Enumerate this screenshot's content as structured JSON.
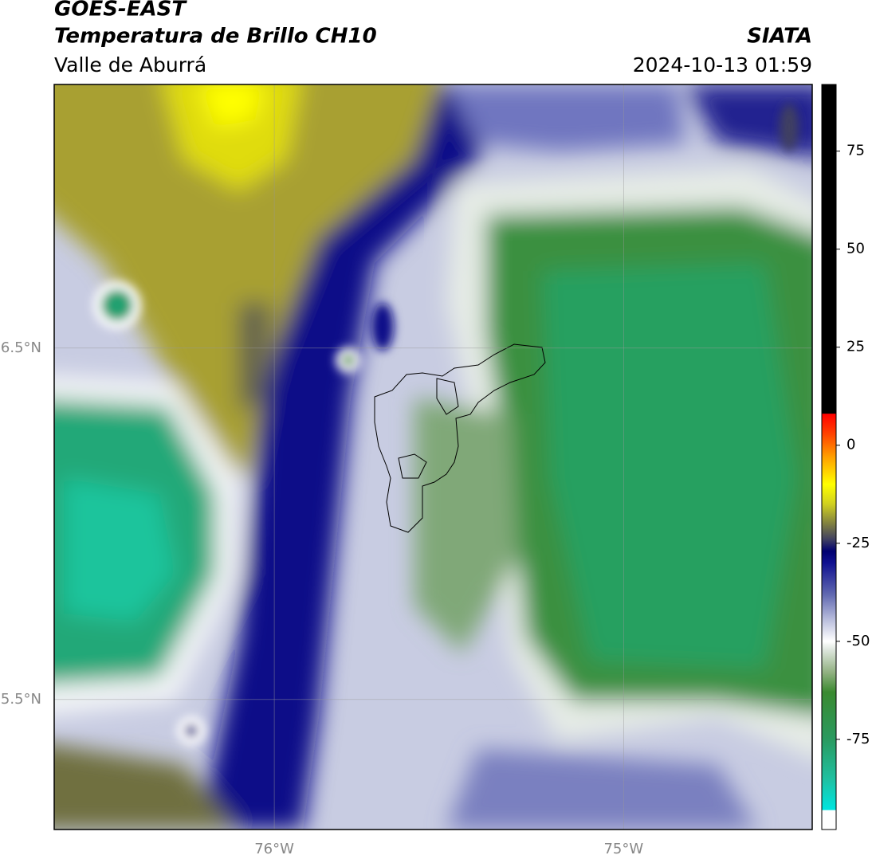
{
  "header": {
    "title": "GOES-EAST",
    "subtitle": "Temperatura de Brillo CH10",
    "region": "Valle de Aburrá",
    "source": "SIATA",
    "timestamp": "2024-10-13 01:59"
  },
  "map": {
    "xlim": [
      -76.63,
      -74.46
    ],
    "ylim": [
      5.13,
      7.25
    ],
    "xticks": [
      {
        "value": -76,
        "label": "76°W"
      },
      {
        "value": -75,
        "label": "75°W"
      }
    ],
    "yticks": [
      {
        "value": 6.5,
        "label": "6.5°N"
      },
      {
        "value": 5.5,
        "label": "5.5°N"
      }
    ],
    "grid": true
  },
  "colorbar": {
    "lim": [
      -98,
      92
    ],
    "ticks": [
      75,
      50,
      25,
      0,
      -25,
      -50,
      -75
    ],
    "stops": [
      {
        "value": -98,
        "color": "#ffffff"
      },
      {
        "value": -93.1,
        "color": "#ffffff"
      },
      {
        "value": -93,
        "color": "#00e5e0"
      },
      {
        "value": -85,
        "color": "#20c0a0"
      },
      {
        "value": -75,
        "color": "#2a9a60"
      },
      {
        "value": -63,
        "color": "#3a8a30"
      },
      {
        "value": -58,
        "color": "#90b080"
      },
      {
        "value": -52,
        "color": "#e0e8e0"
      },
      {
        "value": -50,
        "color": "#ffffff"
      },
      {
        "value": -45,
        "color": "#c0c4e0"
      },
      {
        "value": -38,
        "color": "#6068b0"
      },
      {
        "value": -30,
        "color": "#101090"
      },
      {
        "value": -27,
        "color": "#000070"
      },
      {
        "value": -24,
        "color": "#404060"
      },
      {
        "value": -20,
        "color": "#808040"
      },
      {
        "value": -15,
        "color": "#d0d020"
      },
      {
        "value": -10,
        "color": "#ffff00"
      },
      {
        "value": -3,
        "color": "#ffa000"
      },
      {
        "value": 3,
        "color": "#ff4000"
      },
      {
        "value": 8,
        "color": "#ff0000"
      },
      {
        "value": 8.1,
        "color": "#000000"
      },
      {
        "value": 92,
        "color": "#000000"
      }
    ]
  }
}
